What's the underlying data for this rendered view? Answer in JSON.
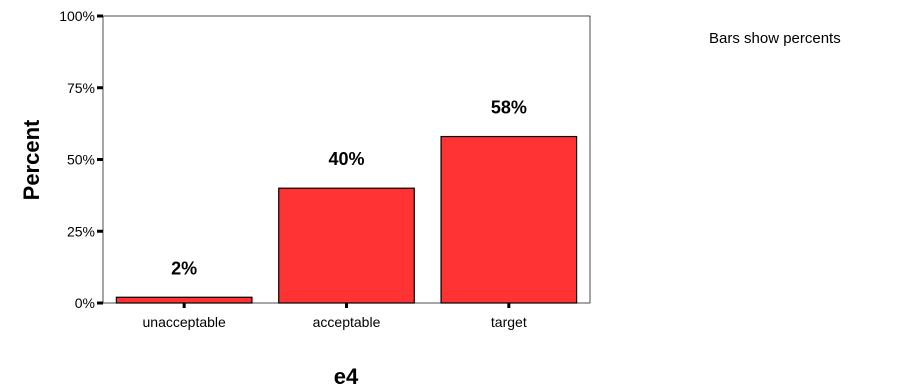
{
  "chart_data": {
    "type": "bar",
    "categories": [
      "unacceptable",
      "acceptable",
      "target"
    ],
    "values": [
      2,
      40,
      58
    ],
    "value_labels": [
      "2%",
      "40%",
      "58%"
    ],
    "ylim": [
      0,
      100
    ],
    "yticks": [
      0,
      25,
      50,
      75,
      100
    ],
    "ytick_labels": [
      "0%",
      "25%",
      "50%",
      "75%",
      "100%"
    ],
    "ylabel": "Percent",
    "xlabel": "e4",
    "note": "Bars show percents",
    "grid": false,
    "bar_color": "#ff3333",
    "bar_edge_color": "#000000"
  }
}
